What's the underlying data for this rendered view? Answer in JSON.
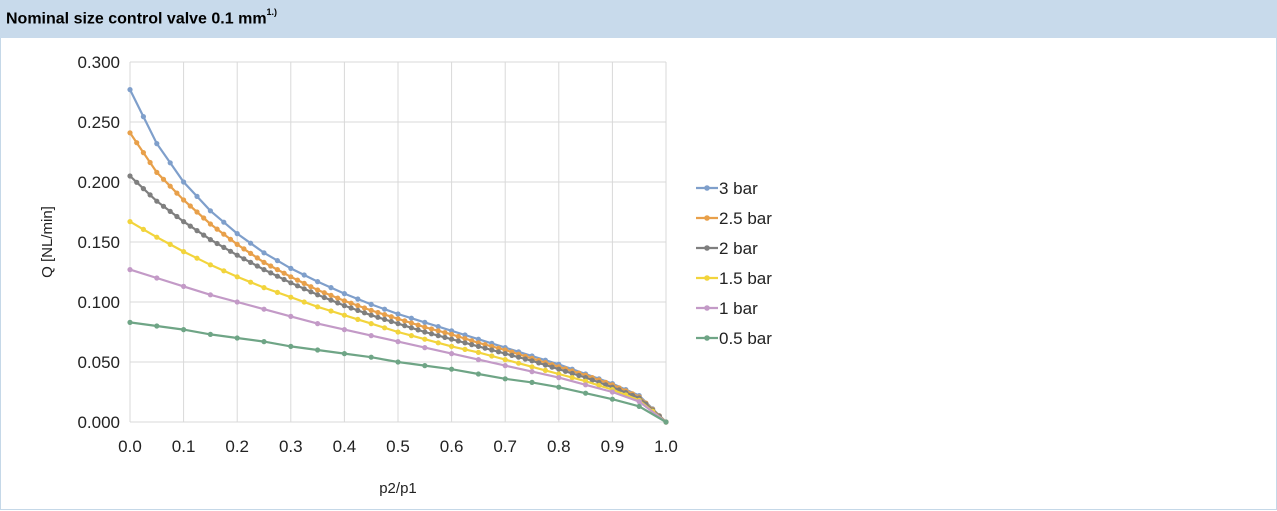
{
  "header": {
    "title": "Nominal size control valve 0.1 mm",
    "title_superscript": "1.)"
  },
  "chart_data": {
    "type": "line",
    "title": "Nominal size control valve 0.1 mm1.)",
    "xlabel": "p2/p1",
    "ylabel": "Q [NL/min]",
    "xlim": [
      0.0,
      1.0
    ],
    "ylim": [
      0.0,
      0.3
    ],
    "x_ticks": [
      "0.0",
      "0.1",
      "0.2",
      "0.3",
      "0.4",
      "0.5",
      "0.6",
      "0.7",
      "0.8",
      "0.9",
      "1.0"
    ],
    "y_ticks": [
      "0.000",
      "0.050",
      "0.100",
      "0.150",
      "0.200",
      "0.250",
      "0.300"
    ],
    "grid": true,
    "legend_position": "right",
    "x": [
      0.0,
      0.05,
      0.1,
      0.15,
      0.2,
      0.25,
      0.3,
      0.35,
      0.4,
      0.45,
      0.5,
      0.55,
      0.6,
      0.65,
      0.7,
      0.75,
      0.8,
      0.85,
      0.9,
      0.95,
      1.0
    ],
    "series": [
      {
        "name": "3 bar",
        "color": "#7f9fcb",
        "values": [
          0.277,
          0.232,
          0.2,
          0.176,
          0.157,
          0.141,
          0.128,
          0.117,
          0.107,
          0.098,
          0.09,
          0.083,
          0.076,
          0.069,
          0.062,
          0.055,
          0.048,
          0.04,
          0.032,
          0.022,
          0.0
        ]
      },
      {
        "name": "2.5 bar",
        "color": "#e8a04a",
        "values": [
          0.241,
          0.208,
          0.185,
          0.165,
          0.148,
          0.133,
          0.121,
          0.11,
          0.101,
          0.093,
          0.086,
          0.079,
          0.073,
          0.066,
          0.06,
          0.053,
          0.046,
          0.039,
          0.031,
          0.021,
          0.0
        ]
      },
      {
        "name": "2 bar",
        "color": "#7f7f7f",
        "values": [
          0.205,
          0.184,
          0.167,
          0.152,
          0.139,
          0.127,
          0.116,
          0.106,
          0.097,
          0.089,
          0.082,
          0.075,
          0.069,
          0.063,
          0.057,
          0.051,
          0.044,
          0.037,
          0.029,
          0.02,
          0.0
        ]
      },
      {
        "name": "1.5 bar",
        "color": "#f2d43c",
        "values": [
          0.167,
          0.154,
          0.142,
          0.131,
          0.121,
          0.112,
          0.104,
          0.096,
          0.089,
          0.082,
          0.075,
          0.069,
          0.063,
          0.058,
          0.052,
          0.046,
          0.04,
          0.034,
          0.027,
          0.018,
          0.0
        ]
      },
      {
        "name": "1 bar",
        "color": "#c39ac7",
        "values": [
          0.127,
          0.12,
          0.113,
          0.106,
          0.1,
          0.094,
          0.088,
          0.082,
          0.077,
          0.072,
          0.067,
          0.062,
          0.057,
          0.052,
          0.047,
          0.042,
          0.037,
          0.031,
          0.025,
          0.017,
          0.0
        ]
      },
      {
        "name": "0.5 bar",
        "color": "#6fa586",
        "values": [
          0.083,
          0.08,
          0.077,
          0.073,
          0.07,
          0.067,
          0.063,
          0.06,
          0.057,
          0.054,
          0.05,
          0.047,
          0.044,
          0.04,
          0.036,
          0.033,
          0.029,
          0.024,
          0.019,
          0.013,
          0.0
        ]
      }
    ]
  }
}
